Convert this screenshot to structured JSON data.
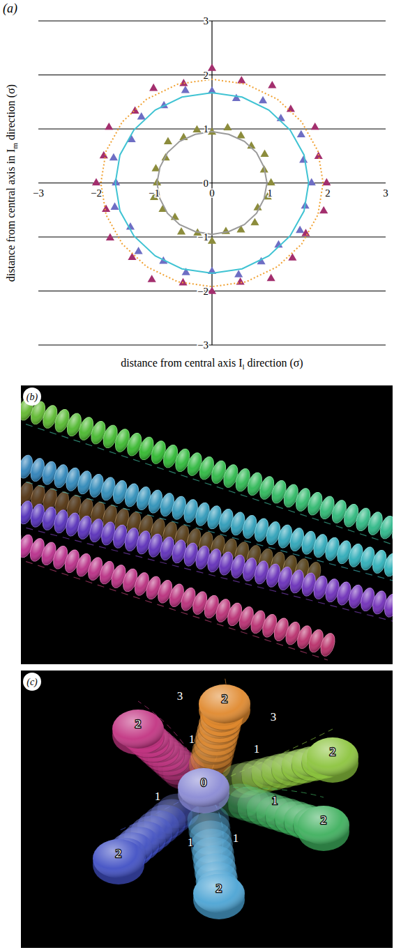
{
  "chart_data": {
    "type": "scatter",
    "panel_label": "(a)",
    "xlabel": {
      "text": "distance from central axis I",
      "subscript": "l",
      "after": " direction (σ)"
    },
    "ylabel": {
      "text": "distance from central axis in I",
      "subscript": "m",
      "after": " direction (σ)"
    },
    "xlim": [
      -3,
      3
    ],
    "ylim": [
      -3,
      3
    ],
    "xticks": [
      {
        "value": -3,
        "label": "−3"
      },
      {
        "value": -2,
        "label": "−2"
      },
      {
        "value": -1,
        "label": "−1"
      },
      0,
      1,
      2,
      3
    ],
    "yticks": [
      {
        "value": -3,
        "label": "−3"
      },
      {
        "value": -2,
        "label": "−2"
      },
      {
        "value": -1,
        "label": "−1"
      },
      0,
      1,
      2,
      3
    ],
    "grid": "y",
    "series": [
      {
        "type": "scatter",
        "marker": "triangle",
        "color": "#8c8c3c",
        "x": [
          1.02,
          0.9,
          0.91,
          0.68,
          0.5,
          0.27,
          0,
          -0.26,
          -0.49,
          -0.76,
          -0.8,
          -0.97,
          -0.95,
          -1.0,
          -0.85,
          -0.64,
          -0.53,
          -0.25,
          0,
          0.24,
          0.5,
          0.74,
          0.79,
          0.96
        ],
        "y": [
          0,
          0.24,
          0.53,
          0.68,
          0.87,
          1.02,
          0.94,
          0.98,
          0.84,
          0.76,
          0.46,
          0.26,
          0,
          -0.27,
          -0.49,
          -0.64,
          -0.91,
          -0.93,
          -1.08,
          -0.9,
          -0.87,
          -0.74,
          -0.46,
          -0.26
        ]
      },
      {
        "type": "scatter",
        "marker": "triangle",
        "color": "#6e6ec4",
        "x": [
          1.72,
          1.58,
          1.54,
          1.19,
          0.88,
          0.42,
          0,
          -0.46,
          -0.83,
          -1.22,
          -1.39,
          -1.7,
          -1.66,
          -1.68,
          -1.41,
          -1.27,
          -0.84,
          -0.45,
          0,
          0.46,
          0.85,
          1.15,
          1.52,
          1.61
        ],
        "y": [
          0,
          0.42,
          0.89,
          1.19,
          1.52,
          1.56,
          1.7,
          1.71,
          1.43,
          1.22,
          0.8,
          0.46,
          0,
          -0.45,
          -0.82,
          -1.27,
          -1.45,
          -1.66,
          -1.64,
          -1.7,
          -1.46,
          -1.15,
          -0.88,
          -0.43
        ]
      },
      {
        "type": "scatter",
        "marker": "triangle",
        "color": "#a32f6e",
        "x": [
          1.98,
          1.84,
          1.78,
          1.36,
          1.04,
          0.51,
          0,
          -0.49,
          -1.01,
          -1.33,
          -1.78,
          -1.87,
          -2.0,
          -1.83,
          -1.76,
          -1.38,
          -1.04,
          -0.5,
          0,
          0.49,
          1.02,
          1.39,
          1.62,
          1.93
        ],
        "y": [
          0,
          0.49,
          1.03,
          1.36,
          1.8,
          1.89,
          2.12,
          1.84,
          1.75,
          1.33,
          1.03,
          0.5,
          0,
          -0.49,
          -1.02,
          -1.38,
          -1.79,
          -1.85,
          -2.01,
          -1.84,
          -1.77,
          -1.39,
          -0.94,
          -0.52
        ]
      },
      {
        "type": "line",
        "line_style": "solid",
        "color": "#9a9a9a",
        "x": [
          0.95,
          0.9,
          0.77,
          0.56,
          0.29,
          0,
          -0.29,
          -0.56,
          -0.77,
          -0.9,
          -0.95,
          -0.9,
          -0.77,
          -0.56,
          -0.29,
          0,
          0.29,
          0.56,
          0.77,
          0.9,
          0.95
        ],
        "y": [
          0,
          0.29,
          0.56,
          0.77,
          0.9,
          0.95,
          0.9,
          0.77,
          0.56,
          0.29,
          0,
          -0.29,
          -0.56,
          -0.77,
          -0.9,
          -0.95,
          -0.9,
          -0.77,
          -0.56,
          -0.29,
          0
        ]
      },
      {
        "type": "line",
        "line_style": "solid",
        "color": "#3fc3d3",
        "x": [
          1.67,
          1.59,
          1.35,
          0.98,
          0.52,
          0,
          -0.52,
          -0.98,
          -1.35,
          -1.59,
          -1.67,
          -1.59,
          -1.35,
          -0.98,
          -0.52,
          0,
          0.52,
          0.98,
          1.35,
          1.59,
          1.67
        ],
        "y": [
          0,
          0.52,
          0.98,
          1.35,
          1.59,
          1.67,
          1.59,
          1.35,
          0.98,
          0.52,
          0,
          -0.52,
          -0.98,
          -1.35,
          -1.59,
          -1.67,
          -1.59,
          -1.35,
          -0.98,
          -0.52,
          0
        ]
      },
      {
        "type": "line",
        "line_style": "dotted",
        "color": "#f0a030",
        "x": [
          1.92,
          1.83,
          1.55,
          1.13,
          0.59,
          0,
          -0.59,
          -1.13,
          -1.55,
          -1.83,
          -1.92,
          -1.83,
          -1.55,
          -1.13,
          -0.59,
          0,
          0.59,
          1.13,
          1.55,
          1.83,
          1.92
        ],
        "y": [
          0,
          0.59,
          1.13,
          1.55,
          1.83,
          1.92,
          1.83,
          1.55,
          1.13,
          0.59,
          0,
          -0.59,
          -1.13,
          -1.55,
          -1.83,
          -1.92,
          -1.83,
          -1.55,
          -1.13,
          -0.59,
          0
        ]
      }
    ]
  },
  "panels": {
    "b": {
      "label": "(b)"
    },
    "c": {
      "label": "(c)",
      "disc_labels": [
        "0",
        "2",
        "2",
        "2",
        "2",
        "2",
        "2",
        "1",
        "1",
        "1",
        "1",
        "1",
        "1",
        "3",
        "3"
      ]
    }
  }
}
